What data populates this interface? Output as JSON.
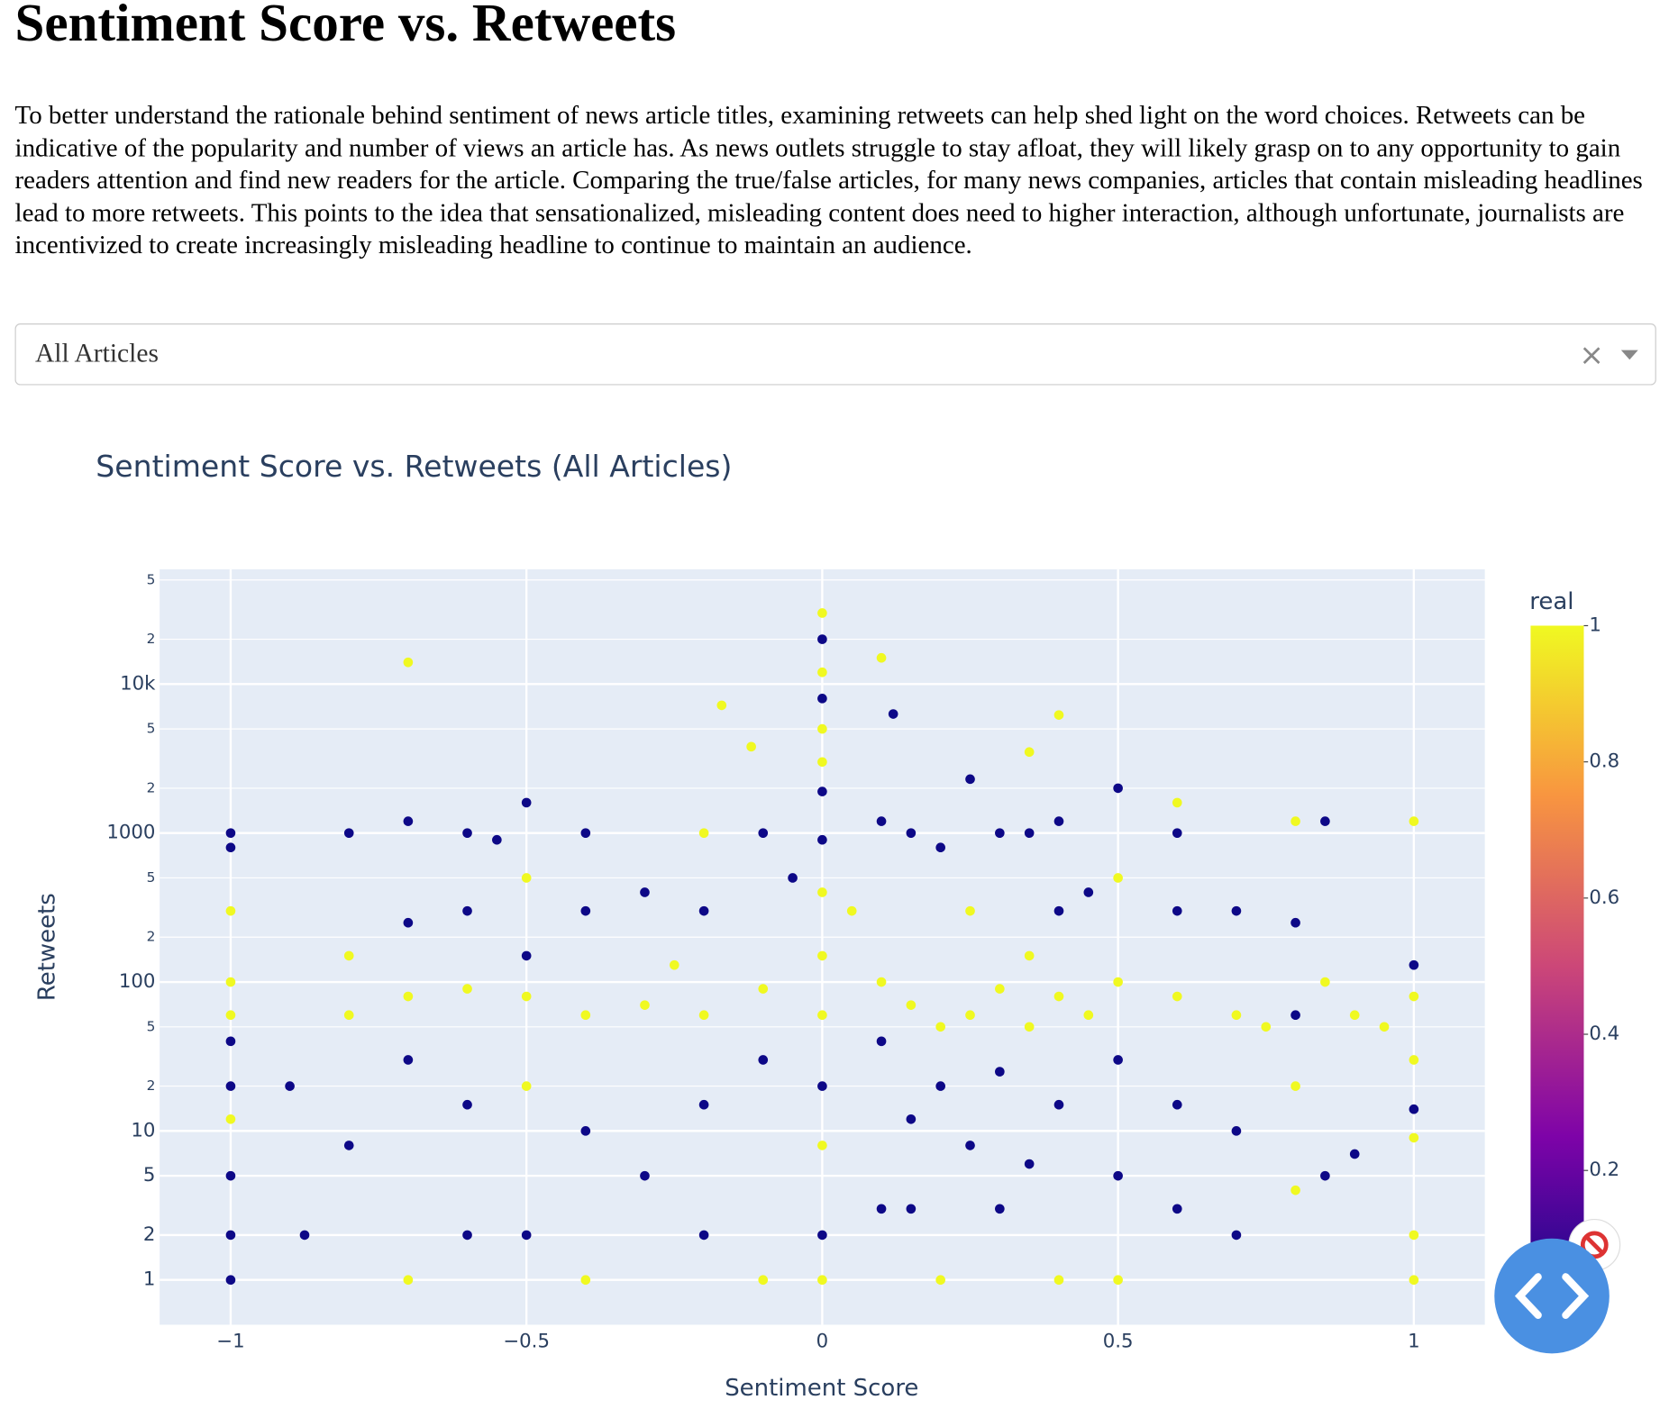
{
  "header": {
    "title": "Sentiment Score vs. Retweets"
  },
  "text": "To better understand the rationale behind sentiment of news article titles, examining retweets can help shed light on the word choices. Retweets can be indicative of the popularity and number of views an article has. As news outlets struggle to stay afloat, they will likely grasp on to any opportunity to gain readers attention and find new readers for the article. Comparing the true/false articles, for many news companies, articles that contain misleading headlines lead to more retweets. This points to the idea that sensationalized, misleading content does need to higher interaction, although unfortunate, journalists are incentivized to create increasingly misleading headline to continue to maintain an audience.",
  "dropdown": {
    "value": "All Articles"
  },
  "chart_data": {
    "type": "scatter",
    "title": "Sentiment Score vs. Retweets (All Articles)",
    "x_label": "Sentiment Score",
    "y_label": "Retweets",
    "y_log": true,
    "grid": true,
    "xlim": [
      -1.12,
      1.12
    ],
    "xticks": [
      {
        "value": -1,
        "label": "−1"
      },
      {
        "value": -0.5,
        "label": "−0.5"
      },
      0,
      0.5,
      1
    ],
    "ylim": [
      0.5,
      59000
    ],
    "yticks": [
      1,
      2,
      5,
      10,
      {
        "value": 20,
        "label": "2"
      },
      {
        "value": 50,
        "label": "5"
      },
      100,
      {
        "value": 200,
        "label": "2"
      },
      {
        "value": 500,
        "label": "5"
      },
      1000,
      {
        "value": 2000,
        "label": "2"
      },
      {
        "value": 5000,
        "label": "5"
      },
      {
        "value": 10000,
        "label": "10k"
      },
      {
        "value": 20000,
        "label": "2"
      },
      {
        "value": 50000,
        "label": "5"
      }
    ],
    "colorbar_title": "real",
    "colorbar_lim": [
      0,
      1
    ],
    "colorbar_ticks": [
      0.2,
      0.4,
      0.6,
      0.8,
      1
    ],
    "colorscale": [
      "#0d0887",
      "#7e03a8",
      "#cc4778",
      "#f89540",
      "#f0f921"
    ],
    "x": [
      -1,
      -1,
      -1,
      -1,
      -1,
      -1,
      -1,
      -1,
      -1,
      -1,
      -1,
      -0.9,
      -0.875,
      -0.8,
      -0.8,
      -0.8,
      -0.8,
      -0.7,
      -0.7,
      -0.7,
      -0.7,
      -0.7,
      -0.7,
      -0.6,
      -0.6,
      -0.6,
      -0.6,
      -0.6,
      -0.55,
      -0.5,
      -0.5,
      -0.5,
      -0.5,
      -0.5,
      -0.5,
      -0.4,
      -0.4,
      -0.4,
      -0.4,
      -0.4,
      -0.3,
      -0.3,
      -0.3,
      -0.25,
      -0.2,
      -0.2,
      -0.2,
      -0.2,
      -0.2,
      -0.17,
      -0.12,
      -0.1,
      -0.1,
      -0.1,
      -0.1,
      -0.05,
      0,
      0,
      0,
      0,
      0,
      0,
      0,
      0,
      0,
      0,
      0,
      0,
      0,
      0,
      0,
      0.05,
      0.1,
      0.1,
      0.1,
      0.1,
      0.1,
      0.12,
      0.15,
      0.15,
      0.15,
      0.15,
      0.2,
      0.2,
      0.2,
      0.2,
      0.25,
      0.25,
      0.25,
      0.25,
      0.3,
      0.3,
      0.3,
      0.3,
      0.35,
      0.35,
      0.35,
      0.35,
      0.35,
      0.4,
      0.4,
      0.4,
      0.4,
      0.4,
      0.4,
      0.45,
      0.45,
      0.5,
      0.5,
      0.5,
      0.5,
      0.5,
      0.5,
      0.6,
      0.6,
      0.6,
      0.6,
      0.6,
      0.6,
      0.7,
      0.7,
      0.7,
      0.7,
      0.75,
      0.8,
      0.8,
      0.8,
      0.8,
      0.8,
      0.85,
      0.85,
      0.85,
      0.9,
      0.9,
      0.95,
      1,
      1,
      1,
      1,
      1,
      1,
      1,
      1
    ],
    "y": [
      1000,
      800,
      300,
      100,
      60,
      40,
      20,
      12,
      5,
      2,
      1,
      20,
      2,
      1000,
      150,
      60,
      8,
      14000,
      1200,
      250,
      80,
      30,
      1,
      1000,
      300,
      90,
      15,
      2,
      900,
      1600,
      500,
      150,
      80,
      20,
      2,
      1000,
      300,
      60,
      10,
      1,
      400,
      70,
      5,
      130,
      1000,
      300,
      60,
      15,
      2,
      7200,
      3800,
      1000,
      90,
      30,
      1,
      500,
      30000,
      20000,
      12000,
      8000,
      5000,
      3000,
      1900,
      900,
      400,
      150,
      60,
      20,
      8,
      2,
      1,
      300,
      15000,
      1200,
      100,
      40,
      3,
      6300,
      1000,
      70,
      12,
      3,
      800,
      50,
      20,
      1,
      2300,
      300,
      60,
      8,
      1000,
      90,
      25,
      3,
      3500,
      1000,
      150,
      50,
      6,
      6200,
      1200,
      300,
      80,
      15,
      1,
      400,
      60,
      2000,
      500,
      100,
      30,
      5,
      1,
      1600,
      1000,
      300,
      80,
      15,
      3,
      300,
      60,
      10,
      2,
      50,
      1200,
      250,
      60,
      20,
      4,
      1200,
      100,
      5,
      60,
      7,
      50,
      1200,
      130,
      80,
      30,
      14,
      9,
      2,
      1
    ],
    "real": [
      0,
      0,
      1,
      1,
      1,
      0,
      0,
      1,
      0,
      0,
      0,
      0,
      0,
      0,
      1,
      1,
      0,
      1,
      0,
      0,
      1,
      0,
      1,
      0,
      0,
      1,
      0,
      0,
      0,
      0,
      1,
      0,
      1,
      1,
      0,
      0,
      0,
      1,
      0,
      1,
      0,
      1,
      0,
      1,
      1,
      0,
      1,
      0,
      0,
      1,
      1,
      0,
      1,
      0,
      1,
      0,
      1,
      0,
      1,
      0,
      1,
      1,
      0,
      0,
      1,
      1,
      1,
      0,
      1,
      0,
      1,
      1,
      1,
      0,
      1,
      0,
      0,
      0,
      0,
      1,
      0,
      0,
      0,
      1,
      0,
      1,
      0,
      1,
      1,
      0,
      0,
      1,
      0,
      0,
      1,
      0,
      1,
      1,
      0,
      1,
      0,
      0,
      1,
      0,
      1,
      0,
      1,
      0,
      1,
      1,
      0,
      0,
      1,
      1,
      0,
      0,
      1,
      0,
      0,
      0,
      1,
      0,
      0,
      1,
      1,
      0,
      0,
      1,
      1,
      0,
      1,
      0,
      1,
      0,
      1,
      1,
      0,
      1,
      1,
      0,
      1,
      1,
      1
    ]
  }
}
